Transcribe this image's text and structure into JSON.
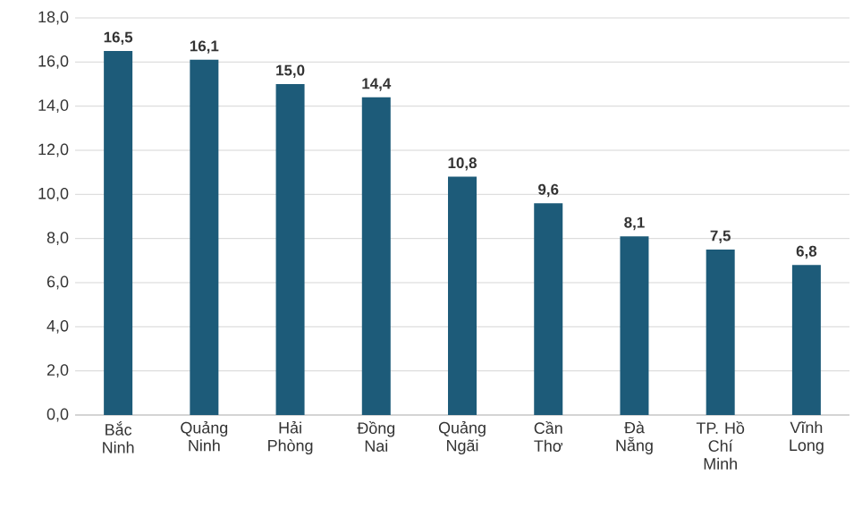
{
  "chart_data": {
    "type": "bar",
    "categories": [
      "Bắc Ninh",
      "Quảng Ninh",
      "Hải Phòng",
      "Đồng Nai",
      "Quảng Ngãi",
      "Cần Thơ",
      "Đà Nẵng",
      "TP. Hồ Chí Minh",
      "Vĩnh Long"
    ],
    "values": [
      16.5,
      16.1,
      15.0,
      14.4,
      10.8,
      9.6,
      8.1,
      7.5,
      6.8
    ],
    "value_labels": [
      "16,5",
      "16,1",
      "15,0",
      "14,4",
      "10,8",
      "9,6",
      "8,1",
      "7,5",
      "6,8"
    ],
    "color": "#1d5b79",
    "ylim": [
      0,
      18
    ],
    "yticks": [
      {
        "value": 0,
        "label": "0,0"
      },
      {
        "value": 2,
        "label": "2,0"
      },
      {
        "value": 4,
        "label": "4,0"
      },
      {
        "value": 6,
        "label": "6,0"
      },
      {
        "value": 8,
        "label": "8,0"
      },
      {
        "value": 10,
        "label": "10,0"
      },
      {
        "value": 12,
        "label": "12,0"
      },
      {
        "value": 14,
        "label": "14,0"
      },
      {
        "value": 16,
        "label": "16,0"
      },
      {
        "value": 18,
        "label": "18,0"
      }
    ],
    "grid": "y"
  }
}
